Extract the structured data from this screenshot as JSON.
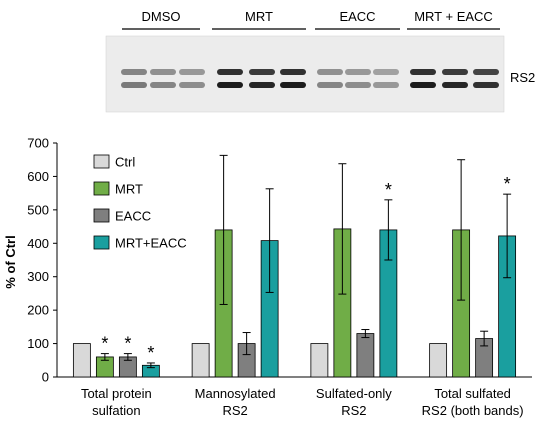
{
  "blot": {
    "lane_groups": [
      "DMSO",
      "MRT",
      "EACC",
      "MRT + EACC"
    ],
    "band_label": "RS2"
  },
  "chart_data": {
    "type": "bar",
    "title": "",
    "xlabel": "",
    "ylabel": "% of Ctrl",
    "ylim": [
      0,
      700
    ],
    "yticks": [
      "0",
      "100",
      "200",
      "300",
      "400",
      "500",
      "600",
      "700"
    ],
    "grid": false,
    "legend_position": "top-left",
    "categories": [
      [
        "Total protein",
        "sulfation"
      ],
      [
        "Mannosylated",
        "RS2"
      ],
      [
        "Sulfated-only",
        "RS2"
      ],
      [
        "Total sulfated",
        "RS2 (both bands)"
      ]
    ],
    "series": [
      {
        "name": "Ctrl",
        "color": "#d9d9d9",
        "values": [
          100,
          100,
          100,
          100
        ],
        "errors": [
          0,
          0,
          0,
          0
        ],
        "significant": [
          false,
          false,
          false,
          false
        ]
      },
      {
        "name": "MRT",
        "color": "#70ad47",
        "values": [
          60,
          440,
          443,
          440
        ],
        "errors": [
          10,
          223,
          195,
          210
        ],
        "significant": [
          true,
          false,
          false,
          false
        ]
      },
      {
        "name": "EACC",
        "color": "#7f7f7f",
        "values": [
          60,
          100,
          130,
          115
        ],
        "errors": [
          10,
          33,
          12,
          22
        ],
        "significant": [
          true,
          false,
          false,
          false
        ]
      },
      {
        "name": "MRT+EACC",
        "color": "#1a9f9f",
        "values": [
          35,
          408,
          440,
          422
        ],
        "errors": [
          7,
          155,
          90,
          125
        ],
        "significant": [
          true,
          false,
          true,
          true
        ]
      }
    ],
    "significance_marker": "*"
  }
}
